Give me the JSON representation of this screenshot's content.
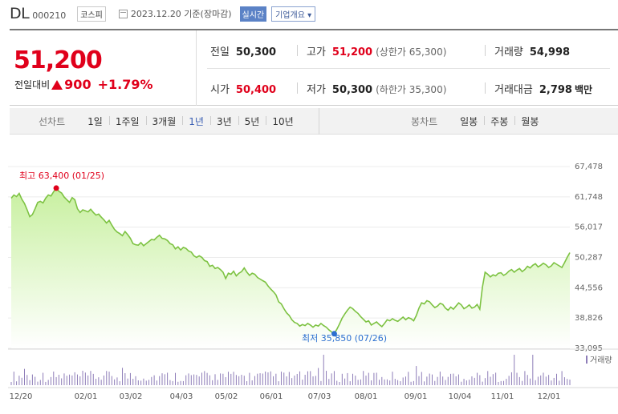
{
  "header": {
    "stock_name": "DL",
    "stock_code": "000210",
    "market": "코스피",
    "date_label": "2023.12.20 기준(장마감)",
    "realtime_label": "실시간",
    "company_info_label": "기업개요 ▾"
  },
  "summary": {
    "price": "51,200",
    "change_label": "전일대비",
    "change_amount": "900",
    "change_percent": "+1.79%",
    "prev_close_label": "전일",
    "prev_close": "50,300",
    "open_label": "시가",
    "open": "50,400",
    "high_label": "고가",
    "high": "51,200",
    "upper_limit": "(상한가 65,300)",
    "low_label": "저가",
    "low": "50,300",
    "lower_limit": "(하한가 35,300)",
    "volume_label": "거래량",
    "volume": "54,998",
    "amount_label": "거래대금",
    "amount": "2,798",
    "amount_unit": "백만",
    "up_color": "#e0001b"
  },
  "tabs": {
    "line_label": "선차트",
    "line_tabs": [
      "1일",
      "1주일",
      "3개월",
      "1년",
      "3년",
      "5년",
      "10년"
    ],
    "active_line_tab": "1년",
    "candle_label": "봉차트",
    "candle_tabs": [
      "일봉",
      "주봉",
      "월봉"
    ]
  },
  "chart_data": {
    "type": "area",
    "x_ticks": [
      "12/20",
      "02/01",
      "03/02",
      "04/03",
      "05/02",
      "06/01",
      "07/03",
      "08/01",
      "09/01",
      "10/04",
      "11/01",
      "12/01"
    ],
    "y_ticks": [
      "67,478",
      "61,748",
      "56,017",
      "50,287",
      "44,556",
      "38,826",
      "33,095"
    ],
    "ylim": [
      33095,
      67478
    ],
    "high_annotation": "최고 63,400 (01/25)",
    "low_annotation": "최저 35,850 (07/26)",
    "volume_label": "거래량",
    "line_color": "#7dc242",
    "fill_color": "#c8f0a0",
    "series": [
      {
        "values": [
          61500,
          62100,
          61800,
          62400,
          61300,
          60500,
          59300,
          58000,
          58400,
          59500,
          60700,
          60900,
          60600,
          61500,
          62100,
          61900,
          62700,
          63400,
          62800,
          62500,
          61700,
          61200,
          60700,
          61600,
          61200,
          59500,
          58800,
          59300,
          59100,
          58900,
          59400,
          58800,
          58300,
          58500,
          57900,
          57400,
          56800,
          57300,
          56400,
          55600,
          55100,
          54800,
          54400,
          55200,
          54600,
          53900,
          52900,
          52700,
          52600,
          53100,
          52500,
          52900,
          53300,
          53700,
          53600,
          54100,
          54500,
          53900,
          53800,
          53500,
          52900,
          52700,
          51900,
          52300,
          51700,
          52200,
          52000,
          51500,
          51300,
          50600,
          50300,
          50600,
          50300,
          49700,
          49500,
          48600,
          48800,
          48200,
          48400,
          48000,
          47500,
          46300,
          47300,
          47100,
          47700,
          46800,
          47300,
          47600,
          48300,
          47500,
          46900,
          47300,
          47100,
          46500,
          46200,
          45900,
          45600,
          44900,
          44300,
          43800,
          43200,
          41900,
          41500,
          40600,
          39800,
          39300,
          38500,
          38000,
          37800,
          37300,
          37600,
          37400,
          37800,
          37500,
          37100,
          37500,
          37300,
          37800,
          37400,
          37100,
          36600,
          36200,
          35850,
          36700,
          37700,
          38800,
          39600,
          40300,
          40900,
          40600,
          40100,
          39700,
          39100,
          38600,
          38100,
          38300,
          37500,
          37800,
          38100,
          37600,
          37200,
          37800,
          38500,
          38300,
          38700,
          38400,
          38200,
          38600,
          39000,
          38500,
          38900,
          38700,
          38300,
          39300,
          40700,
          41700,
          41500,
          42100,
          41900,
          41300,
          40800,
          41100,
          41600,
          41400,
          40700,
          40300,
          40900,
          40500,
          41100,
          41700,
          41300,
          40600,
          40900,
          41300,
          40700,
          40900,
          41400,
          40500,
          44700,
          47500,
          47100,
          46600,
          47000,
          46800,
          47300,
          47400,
          46900,
          47200,
          47700,
          48000,
          47500,
          47900,
          48200,
          47600,
          48000,
          48600,
          48300,
          48800,
          49100,
          48500,
          48800,
          49200,
          48900,
          48400,
          48700,
          49300,
          49000,
          48700,
          48400,
          49300,
          50300,
          51200
        ]
      }
    ]
  }
}
